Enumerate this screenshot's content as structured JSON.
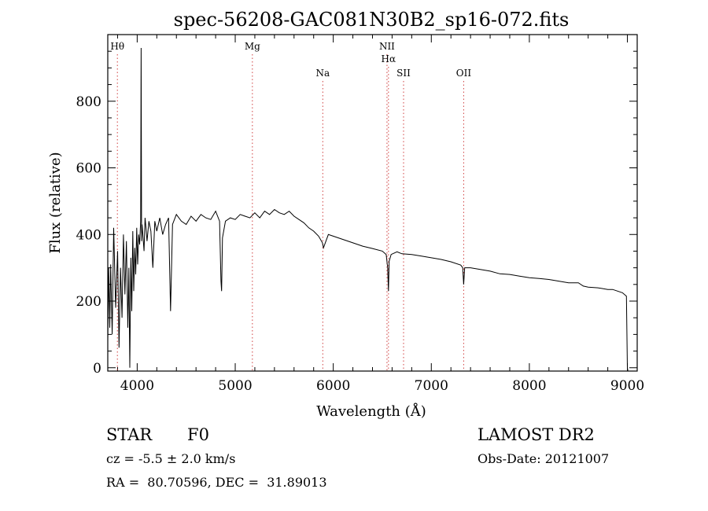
{
  "chart_data": {
    "type": "line",
    "title": "spec-56208-GAC081N30B2_sp16-072.fits",
    "xlabel": "Wavelength (Å)",
    "ylabel": "Flux (relative)",
    "xlim": [
      3700,
      9100
    ],
    "ylim": [
      -10,
      1000
    ],
    "xticks": [
      4000,
      5000,
      6000,
      7000,
      8000,
      9000
    ],
    "yticks": [
      0,
      200,
      400,
      600,
      800
    ],
    "grid": false,
    "emission_lines": [
      {
        "label": "Hθ",
        "x": 3798,
        "row": 1
      },
      {
        "label": "Mg",
        "x": 5175,
        "row": 1
      },
      {
        "label": "Na",
        "x": 5893,
        "row": 2
      },
      {
        "label": "NII",
        "x": 6548,
        "row": 1
      },
      {
        "label": "Hα",
        "x": 6563,
        "row": 1.5
      },
      {
        "label": "SII",
        "x": 6717,
        "row": 2
      },
      {
        "label": "OII",
        "x": 7330,
        "row": 2
      }
    ],
    "series": [
      {
        "x": [
          3700,
          3710,
          3720,
          3730,
          3745,
          3760,
          3780,
          3800,
          3815,
          3830,
          3845,
          3860,
          3875,
          3890,
          3905,
          3915,
          3925,
          3935,
          3945,
          3955,
          3965,
          3975,
          3985,
          3995,
          4005,
          4015,
          4025,
          4035,
          4040,
          4045,
          4050,
          4060,
          4070,
          4080,
          4090,
          4100,
          4120,
          4140,
          4160,
          4180,
          4200,
          4230,
          4260,
          4290,
          4320,
          4340,
          4360,
          4400,
          4450,
          4500,
          4550,
          4600,
          4650,
          4700,
          4750,
          4800,
          4840,
          4855,
          4861,
          4870,
          4900,
          4950,
          5000,
          5050,
          5100,
          5150,
          5200,
          5250,
          5300,
          5350,
          5400,
          5450,
          5500,
          5550,
          5600,
          5650,
          5700,
          5750,
          5800,
          5850,
          5890,
          5900,
          5950,
          6000,
          6100,
          6200,
          6300,
          6400,
          6500,
          6540,
          6555,
          6563,
          6570,
          6590,
          6650,
          6700,
          6800,
          6900,
          7000,
          7100,
          7200,
          7300,
          7320,
          7330,
          7340,
          7400,
          7500,
          7600,
          7700,
          7800,
          7900,
          8000,
          8100,
          8200,
          8300,
          8400,
          8500,
          8550,
          8600,
          8700,
          8800,
          8850,
          8900,
          8950,
          8990,
          9000,
          9005
        ],
        "y": [
          80,
          300,
          120,
          310,
          100,
          420,
          180,
          350,
          60,
          300,
          150,
          400,
          220,
          380,
          120,
          300,
          0,
          330,
          170,
          410,
          230,
          360,
          280,
          420,
          310,
          400,
          370,
          440,
          960,
          380,
          430,
          390,
          350,
          450,
          420,
          380,
          440,
          410,
          300,
          440,
          410,
          450,
          400,
          430,
          450,
          170,
          430,
          460,
          440,
          430,
          455,
          440,
          460,
          450,
          445,
          470,
          440,
          260,
          230,
          390,
          440,
          450,
          445,
          460,
          455,
          450,
          465,
          450,
          470,
          460,
          475,
          465,
          460,
          470,
          455,
          445,
          435,
          420,
          410,
          395,
          375,
          360,
          400,
          395,
          385,
          375,
          365,
          358,
          350,
          340,
          300,
          230,
          320,
          340,
          348,
          342,
          340,
          335,
          330,
          325,
          318,
          308,
          300,
          250,
          300,
          300,
          295,
          290,
          282,
          280,
          275,
          270,
          268,
          265,
          260,
          255,
          255,
          245,
          242,
          240,
          235,
          235,
          230,
          225,
          215,
          0,
          -10
        ]
      }
    ]
  },
  "info": {
    "object_class": "STAR",
    "subclass": "F0",
    "redshift": "cz = -5.5 ± 2.0 km/s",
    "coords": "RA =  80.70596, DEC =  31.89013",
    "survey": "LAMOST DR2",
    "obs_date": "Obs-Date: 20121007"
  }
}
